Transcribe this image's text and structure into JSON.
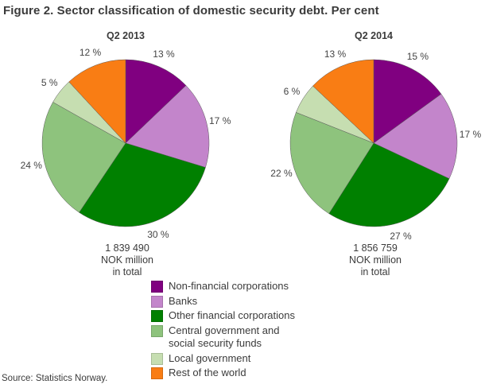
{
  "page_title": "Figure 2. Sector classification of domestic security debt. Per cent",
  "source_note": "Source: Statistics Norway.",
  "palette": [
    "#800080",
    "#C385CB",
    "#008000",
    "#8EC37D",
    "#C6DEB1",
    "#F97D14"
  ],
  "slice_stroke_color": "#595959",
  "legend": {
    "items": [
      {
        "label": "Non-financial corporations",
        "color": "#800080"
      },
      {
        "label": "Banks",
        "color": "#C385CB"
      },
      {
        "label": "Other financial corporations",
        "color": "#008000"
      },
      {
        "label": "Central government and\nsocial security funds",
        "color": "#8EC37D"
      },
      {
        "label": "Local government",
        "color": "#C6DEB1"
      },
      {
        "label": "Rest of the world",
        "color": "#F97D14"
      }
    ]
  },
  "chart_data": [
    {
      "type": "pie",
      "title": "Q2 2013",
      "categories": [
        "Non-financial corporations",
        "Banks",
        "Other financial corporations",
        "Central government and social security funds",
        "Local government",
        "Rest of the world"
      ],
      "values": [
        13,
        17,
        30,
        24,
        5,
        12
      ],
      "value_suffix": " %",
      "total_label": "1 839 490\nNOK million\nin total",
      "start_angle_deg": 0,
      "direction": "clockwise"
    },
    {
      "type": "pie",
      "title": "Q2 2014",
      "categories": [
        "Non-financial corporations",
        "Banks",
        "Other financial corporations",
        "Central government and social security funds",
        "Local government",
        "Rest of the world"
      ],
      "values": [
        15,
        17,
        27,
        22,
        6,
        13
      ],
      "value_suffix": " %",
      "total_label": "1 856 759\nNOK million\nin total",
      "start_angle_deg": 0,
      "direction": "clockwise"
    }
  ]
}
